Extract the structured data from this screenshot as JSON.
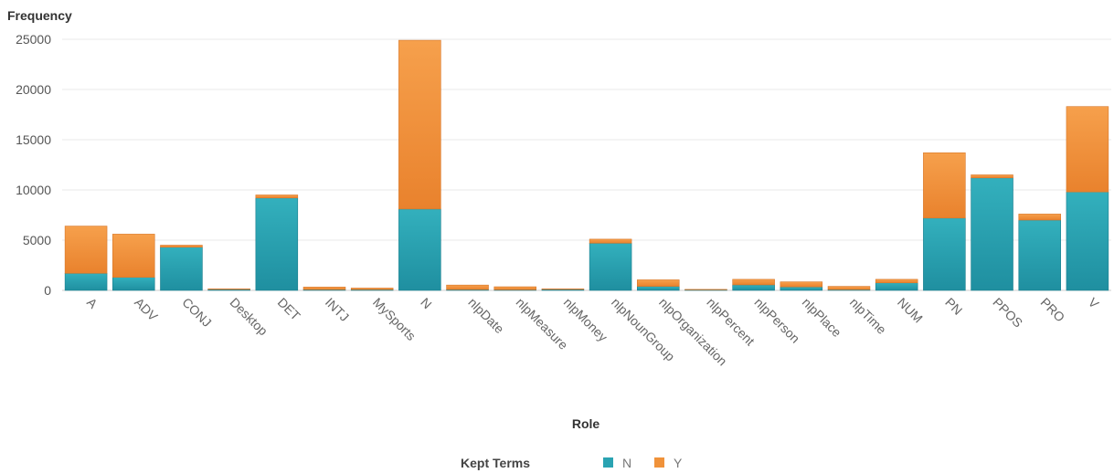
{
  "chart_data": {
    "type": "bar",
    "stacked": true,
    "title": "",
    "xlabel": "Role",
    "ylabel": "Frequency",
    "ylim": [
      0,
      25000
    ],
    "yticks": [
      0,
      5000,
      10000,
      15000,
      20000,
      25000
    ],
    "grid": true,
    "legend_title": "Kept Terms",
    "legend_position": "bottom",
    "categories": [
      "A",
      "ADV",
      "CONJ",
      "Desktop",
      "DET",
      "INTJ",
      "MySports",
      "N",
      "nlpDate",
      "nlpMeasure",
      "nlpMoney",
      "nlpNounGroup",
      "nlpOrganization",
      "nlpPercent",
      "nlpPerson",
      "nlpPlace",
      "nlpTime",
      "NUM",
      "PN",
      "PPOS",
      "PRO",
      "V"
    ],
    "series": [
      {
        "name": "N",
        "color": "#2aa3b2",
        "values": [
          1700,
          1300,
          4300,
          100,
          9200,
          80,
          80,
          8100,
          80,
          60,
          100,
          4700,
          400,
          60,
          550,
          350,
          80,
          750,
          7200,
          11200,
          7000,
          9800
        ]
      },
      {
        "name": "Y",
        "color": "#f0923a",
        "values": [
          4700,
          4300,
          200,
          50,
          300,
          250,
          150,
          16800,
          450,
          300,
          50,
          400,
          650,
          40,
          550,
          500,
          320,
          350,
          6500,
          300,
          600,
          8500
        ]
      }
    ]
  }
}
